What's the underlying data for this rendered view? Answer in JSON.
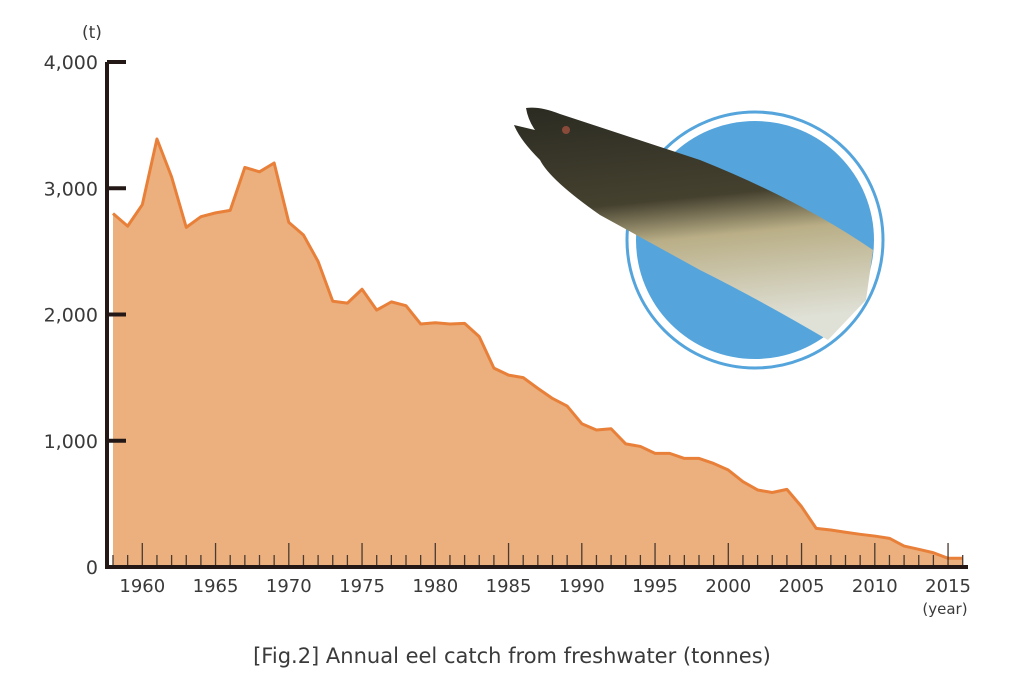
{
  "chart_data": {
    "type": "area",
    "title": "[Fig.2]  Annual eel catch from freshwater (tonnes)",
    "xlabel": "(year)",
    "ylabel": "(t)",
    "ylim": [
      0,
      4000
    ],
    "xlim": [
      1958,
      2016
    ],
    "grid": false,
    "y_ticks": [
      0,
      1000,
      2000,
      3000,
      4000
    ],
    "y_tick_labels": [
      "0",
      "1,000",
      "2,000",
      "3,000",
      "4,000"
    ],
    "x_ticks": [
      1960,
      1965,
      1970,
      1975,
      1980,
      1985,
      1990,
      1995,
      2000,
      2005,
      2010,
      2015
    ],
    "x_tick_labels": [
      "1960",
      "1965",
      "1970",
      "1975",
      "1980",
      "1985",
      "1990",
      "1995",
      "2000",
      "2005",
      "2010",
      "2015"
    ],
    "x": [
      1958,
      1959,
      1960,
      1961,
      1962,
      1963,
      1964,
      1965,
      1966,
      1967,
      1968,
      1969,
      1970,
      1971,
      1972,
      1973,
      1974,
      1975,
      1976,
      1977,
      1978,
      1979,
      1980,
      1981,
      1982,
      1983,
      1984,
      1985,
      1986,
      1987,
      1988,
      1989,
      1990,
      1991,
      1992,
      1993,
      1994,
      1995,
      1996,
      1997,
      1998,
      1999,
      2000,
      2001,
      2002,
      2003,
      2004,
      2005,
      2006,
      2007,
      2008,
      2009,
      2010,
      2011,
      2012,
      2013,
      2014,
      2015,
      2016
    ],
    "series": [
      {
        "name": "Annual eel catch from freshwater",
        "color": "#e8803a",
        "fill": "#ebb07e",
        "values": [
          2800,
          2700,
          2870,
          3390,
          3090,
          2690,
          2775,
          2805,
          2825,
          3165,
          3130,
          3200,
          2730,
          2630,
          2420,
          2105,
          2090,
          2200,
          2035,
          2100,
          2070,
          1925,
          1935,
          1925,
          1930,
          1825,
          1575,
          1520,
          1500,
          1415,
          1335,
          1275,
          1135,
          1085,
          1095,
          975,
          955,
          900,
          900,
          860,
          860,
          820,
          768,
          676,
          610,
          590,
          615,
          478,
          306,
          293,
          275,
          259,
          245,
          227,
          166,
          140,
          113,
          69,
          69
        ]
      }
    ]
  },
  "caption": "[Fig.2]  Annual eel catch from freshwater (tonnes)",
  "colors": {
    "area_fill": "#ebb07e",
    "line": "#e8803a",
    "axis": "#231815",
    "circle": "#55a5dc"
  }
}
